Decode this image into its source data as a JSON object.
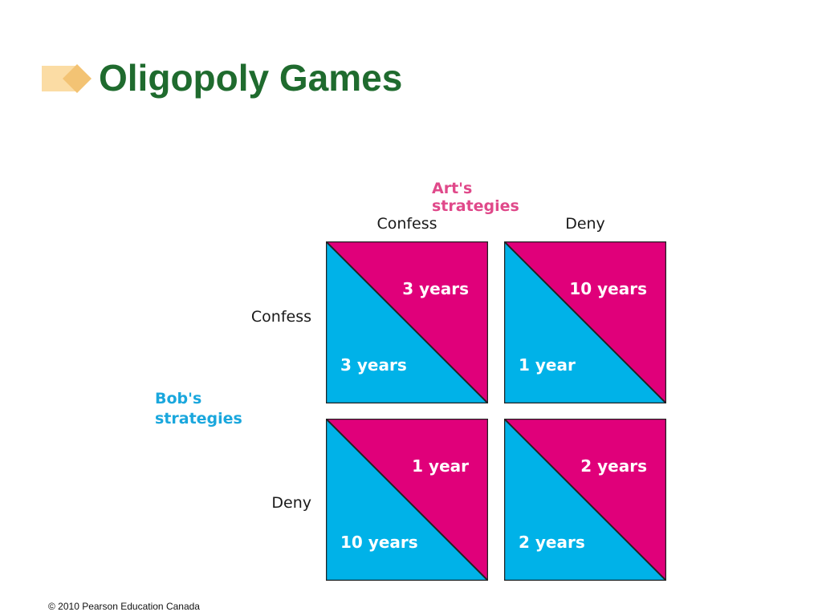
{
  "slide": {
    "title": "Oligopoly Games",
    "footer": "© 2010 Pearson Education Canada"
  },
  "colors": {
    "title": "#1f6b2e",
    "art": "#e0007a",
    "bob": "#00b2e8",
    "art_label": "#e0498a",
    "bob_label": "#1aa7dd"
  },
  "matrix": {
    "art_label": "Art's strategies",
    "bob_label_line1": "Bob's",
    "bob_label_line2": "strategies",
    "columns": [
      "Confess",
      "Deny"
    ],
    "rows": [
      "Confess",
      "Deny"
    ],
    "cells": [
      [
        {
          "art": "3 years",
          "bob": "3 years"
        },
        {
          "art": "10 years",
          "bob": "1 year"
        }
      ],
      [
        {
          "art": "1 year",
          "bob": "10 years"
        },
        {
          "art": "2 years",
          "bob": "2 years"
        }
      ]
    ]
  }
}
